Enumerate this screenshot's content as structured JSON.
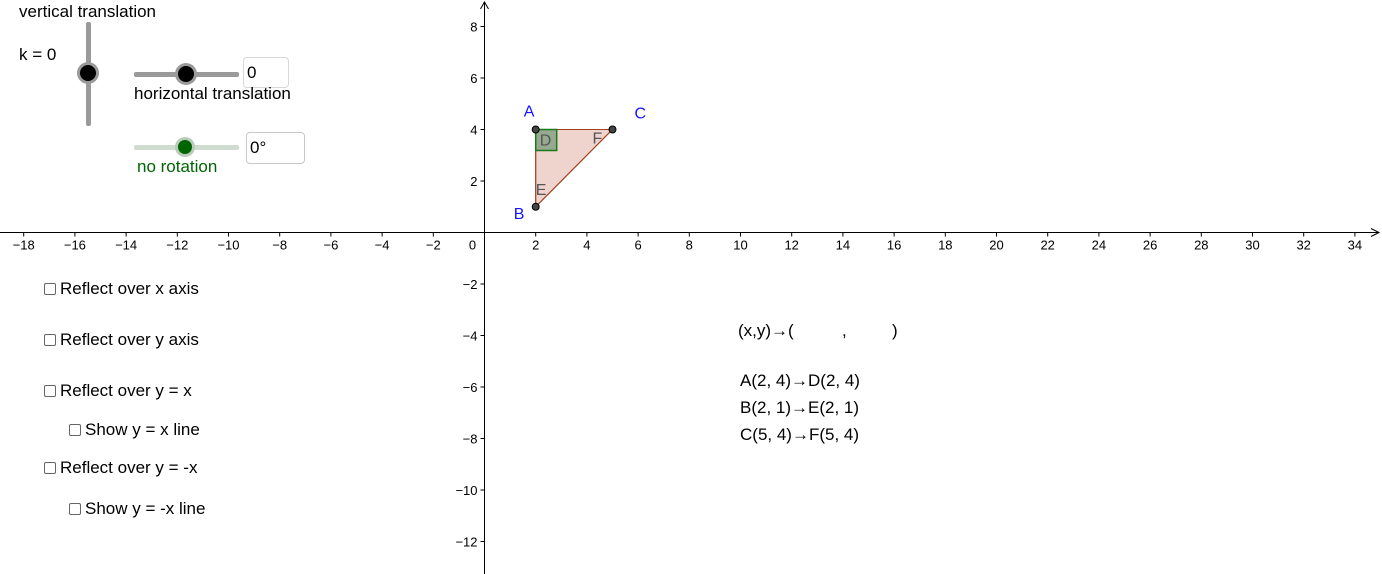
{
  "sliders": {
    "vertical": {
      "title": "vertical translation",
      "value_text": "k = 0",
      "value": 0
    },
    "horizontal": {
      "label": "horizontal translation",
      "input_value": "0",
      "value": 0
    },
    "rotation": {
      "label": "no rotation",
      "input_value": "0°",
      "value": 0
    }
  },
  "checkboxes": [
    {
      "label": "Reflect over x axis",
      "checked": false
    },
    {
      "label": "Reflect over y axis",
      "checked": false
    },
    {
      "label": "Reflect over y = x",
      "checked": false
    },
    {
      "label": "Show y = x line",
      "checked": false
    },
    {
      "label": "Reflect over y = -x",
      "checked": false
    },
    {
      "label": "Show y = -x line",
      "checked": false
    }
  ],
  "rule_text": {
    "left": "(x,y)→(",
    "comma": ",",
    "right": ")"
  },
  "mappings": [
    "A(2, 4)→D(2, 4)",
    "B(2, 1)→E(2, 1)",
    "C(5, 4)→F(5, 4)"
  ],
  "axes": {
    "x_ticks": [
      "−18",
      "−16",
      "−14",
      "−12",
      "−10",
      "−8",
      "−6",
      "−4",
      "−2",
      "0",
      "2",
      "4",
      "6",
      "8",
      "10",
      "12",
      "14",
      "16",
      "18",
      "20",
      "22",
      "24",
      "26",
      "28",
      "30",
      "32",
      "34"
    ],
    "y_ticks": [
      "8",
      "6",
      "4",
      "2",
      "−2",
      "−4",
      "−6",
      "−8",
      "−10",
      "−12"
    ]
  },
  "points": {
    "original": [
      {
        "name": "A",
        "x": 2,
        "y": 4
      },
      {
        "name": "B",
        "x": 2,
        "y": 1
      },
      {
        "name": "C",
        "x": 5,
        "y": 4
      }
    ],
    "image": [
      {
        "name": "D",
        "x": 2,
        "y": 4
      },
      {
        "name": "E",
        "x": 2,
        "y": 1
      },
      {
        "name": "F",
        "x": 5,
        "y": 4
      }
    ]
  },
  "colors": {
    "label_blue": "#1515ff",
    "triangle_fill": "#e8c6bc",
    "triangle_stroke": "#a0401e",
    "square_fill": "#7f9f7f",
    "square_stroke": "#1a7a1a",
    "rotation_green": "#006400"
  }
}
